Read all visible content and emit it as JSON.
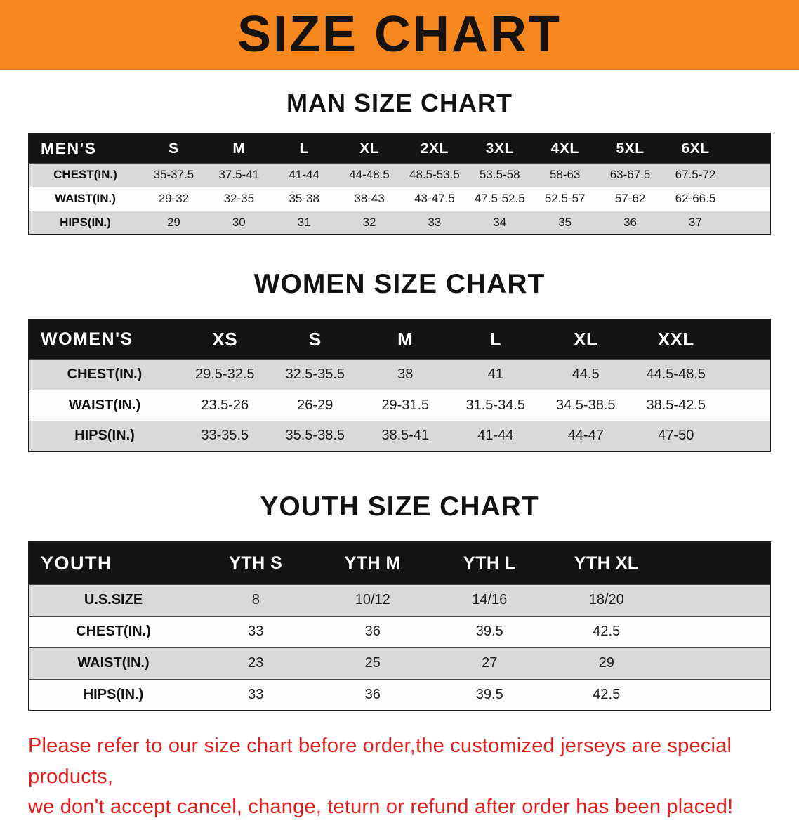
{
  "banner": {
    "title": "SIZE CHART",
    "bg_color": "#F6861E",
    "text_color": "#161311"
  },
  "footer_note": {
    "line1": "Please refer to our size chart before order,the customized jerseys are special products,",
    "line2": "we don't accept cancel, change, teturn or refund after order has been placed!",
    "color": "#E61C1C"
  },
  "chart_data": [
    {
      "type": "table",
      "title": "MAN SIZE CHART",
      "corner_label": "MEN'S",
      "columns": [
        "S",
        "M",
        "L",
        "XL",
        "2XL",
        "3XL",
        "4XL",
        "5XL",
        "6XL"
      ],
      "rows": [
        {
          "label": "CHEST(IN.)",
          "values": [
            "35-37.5",
            "37.5-41",
            "41-44",
            "44-48.5",
            "48.5-53.5",
            "53.5-58",
            "58-63",
            "63-67.5",
            "67.5-72"
          ]
        },
        {
          "label": "WAIST(IN.)",
          "values": [
            "29-32",
            "32-35",
            "35-38",
            "38-43",
            "43-47.5",
            "47.5-52.5",
            "52.5-57",
            "57-62",
            "62-66.5"
          ]
        },
        {
          "label": "HIPS(IN.)",
          "values": [
            "29",
            "30",
            "31",
            "32",
            "33",
            "34",
            "35",
            "36",
            "37"
          ]
        }
      ]
    },
    {
      "type": "table",
      "title": "WOMEN SIZE CHART",
      "corner_label": "WOMEN'S",
      "columns": [
        "XS",
        "S",
        "M",
        "L",
        "XL",
        "XXL"
      ],
      "rows": [
        {
          "label": "CHEST(IN.)",
          "values": [
            "29.5-32.5",
            "32.5-35.5",
            "38",
            "41",
            "44.5",
            "44.5-48.5"
          ]
        },
        {
          "label": "WAIST(IN.)",
          "values": [
            "23.5-26",
            "26-29",
            "29-31.5",
            "31.5-34.5",
            "34.5-38.5",
            "38.5-42.5"
          ]
        },
        {
          "label": "HIPS(IN.)",
          "values": [
            "33-35.5",
            "35.5-38.5",
            "38.5-41",
            "41-44",
            "44-47",
            "47-50"
          ]
        }
      ]
    },
    {
      "type": "table",
      "title": "YOUTH SIZE CHART",
      "corner_label": "YOUTH",
      "columns": [
        "YTH S",
        "YTH M",
        "YTH L",
        "YTH XL"
      ],
      "rows": [
        {
          "label": "U.S.SIZE",
          "values": [
            "8",
            "10/12",
            "14/16",
            "18/20"
          ]
        },
        {
          "label": "CHEST(IN.)",
          "values": [
            "33",
            "36",
            "39.5",
            "42.5"
          ]
        },
        {
          "label": "WAIST(IN.)",
          "values": [
            "23",
            "25",
            "27",
            "29"
          ]
        },
        {
          "label": "HIPS(IN.)",
          "values": [
            "33",
            "36",
            "39.5",
            "42.5"
          ]
        }
      ]
    }
  ]
}
